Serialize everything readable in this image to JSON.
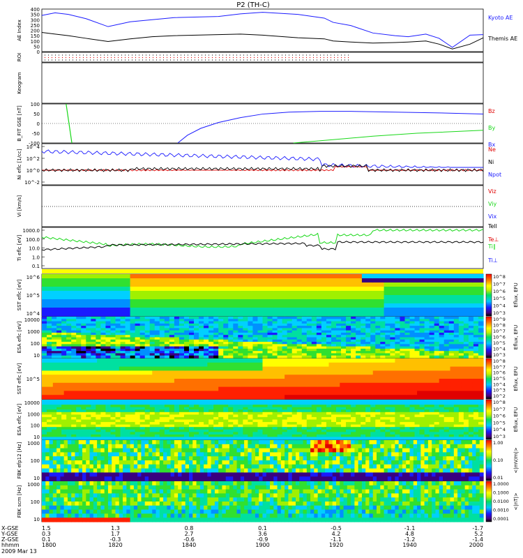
{
  "chart_data": {
    "type": "line",
    "title": "P2 (TH-C)",
    "colors": {
      "blue": "#1a1aff",
      "black": "#000000",
      "green": "#18d818",
      "red": "#e00000"
    },
    "x_axis": {
      "hhmm": [
        "1800",
        "1820",
        "1840",
        "1900",
        "1920",
        "1940",
        "2000"
      ],
      "x_gse": [
        "1.5",
        "1.3",
        "0.8",
        "0.1",
        "-0.5",
        "-1.1",
        "-1.7"
      ],
      "y_gse": [
        "0.3",
        "1.7",
        "2.7",
        "3.6",
        "4.2",
        "4.8",
        "5.2"
      ],
      "z_gse": [
        "0.1",
        "-0.3",
        "-0.6",
        "-0.9",
        "-1.1",
        "-1.2",
        "-1.4"
      ],
      "row_labels": [
        "X-GSE",
        "Y-GSE",
        "Z-GSE",
        "hhmm"
      ],
      "date": "2009 Mar 13"
    },
    "panels": [
      {
        "id": "ae",
        "ylabel": "AE Index",
        "yticks": [
          "0",
          "50",
          "100",
          "150",
          "200",
          "250",
          "300",
          "350",
          "400"
        ],
        "ylim": [
          0,
          400
        ],
        "series": [
          {
            "name": "Kyoto AE",
            "color": "#1a1aff",
            "x": [
              0,
              3,
              6,
              10,
              15,
              20,
              25,
              30,
              40,
              45,
              50,
              58,
              64,
              66,
              70,
              75,
              80,
              83,
              87,
              90,
              93,
              97,
              100
            ],
            "y": [
              340,
              365,
              350,
              310,
              235,
              280,
              300,
              320,
              330,
              355,
              370,
              350,
              315,
              275,
              245,
              175,
              150,
              140,
              165,
              125,
              40,
              155,
              160
            ]
          },
          {
            "name": "Themis AE",
            "color": "#000000",
            "x": [
              0,
              3,
              6,
              10,
              15,
              20,
              25,
              30,
              40,
              45,
              50,
              58,
              64,
              66,
              70,
              75,
              80,
              83,
              87,
              90,
              93,
              97,
              100
            ],
            "y": [
              180,
              165,
              150,
              125,
              95,
              120,
              140,
              150,
              160,
              165,
              155,
              130,
              120,
              100,
              90,
              80,
              85,
              90,
              100,
              70,
              25,
              70,
              130
            ]
          }
        ]
      },
      {
        "id": "roi",
        "ylabel": "ROI"
      },
      {
        "id": "keogram",
        "ylabel": "Keogram"
      },
      {
        "id": "bfit",
        "ylabel": "B_FIT GSE [nT]",
        "yticks": [
          "-100",
          "-50",
          "0",
          "50",
          "100"
        ],
        "ylim": [
          -100,
          100
        ],
        "series": [
          {
            "name": "Bz",
            "color": "#e00000"
          },
          {
            "name": "By",
            "color": "#18d818"
          },
          {
            "name": "Bx",
            "color": "#1a1aff"
          }
        ]
      },
      {
        "id": "density",
        "ylabel": "Ni eflc [1/cc]",
        "yticks": [
          "10^4",
          "10^2",
          "10^0",
          "10^-2"
        ],
        "series": [
          {
            "name": "Ne",
            "color": "#e00000"
          },
          {
            "name": "Ni",
            "color": "#000000"
          },
          {
            "name": "Npot",
            "color": "#1a1aff"
          }
        ]
      },
      {
        "id": "velocity",
        "ylabel": "Vi [km/s]",
        "series": [
          {
            "name": "Viz",
            "color": "#e00000"
          },
          {
            "name": "Viy",
            "color": "#18d818"
          },
          {
            "name": "Vix",
            "color": "#1a1aff"
          }
        ]
      },
      {
        "id": "temp",
        "ylabel": "Ti eflc [eV]",
        "yticks": [
          "1000.0",
          "100.0",
          "10.0",
          "1.0",
          "0.1"
        ],
        "series": [
          {
            "name": "Tell",
            "color": "#000000"
          },
          {
            "name": "Te⊥",
            "color": "#e00000"
          },
          {
            "name": "Ti∥",
            "color": "#18d818"
          },
          {
            "name": "Ti⊥",
            "color": "#1a1aff"
          }
        ]
      },
      {
        "id": "sst_e",
        "ylabel": "SST eflc [eV]",
        "yticks": [
          "10^6",
          "10^5",
          "10^4"
        ],
        "cb_ticks": [
          "10^8",
          "10^7",
          "10^6",
          "10^5",
          "10^4",
          "10^3"
        ],
        "cb_label": "Eflux, EFU"
      },
      {
        "id": "esa_e",
        "ylabel": "ESA eflc [eV]",
        "yticks": [
          "10000",
          "1000",
          "100",
          "10"
        ],
        "cb_ticks": [
          "10^9",
          "10^8",
          "10^7",
          "10^6",
          "10^5",
          "10^4",
          "10^3"
        ],
        "cb_label": "Eflux, EFU"
      },
      {
        "id": "sst_i",
        "ylabel": "SST eflc [eV]",
        "yticks": [
          "10^5"
        ],
        "cb_ticks": [
          "10^8",
          "10^7",
          "10^6",
          "10^5",
          "10^4",
          "10^3",
          "10^2"
        ],
        "cb_label": "Eflux, EFU"
      },
      {
        "id": "esa_i",
        "ylabel": "ESA eflc [eV]",
        "yticks": [
          "10000",
          "1000",
          "100",
          "10"
        ],
        "cb_ticks": [
          "10^8",
          "10^7",
          "10^6",
          "10^5",
          "10^4",
          "10^3"
        ],
        "cb_label": "Eflux, EFU"
      },
      {
        "id": "fbk_e",
        "ylabel": "FBK efp12 [Hz]",
        "yticks": [
          "1000",
          "100",
          "10"
        ],
        "cb_ticks": [
          "1.00",
          "0.10",
          "0.01"
        ],
        "cb_label": "<|mV/m|>"
      },
      {
        "id": "fbk_b",
        "ylabel": "FBK scm [Hz]",
        "yticks": [
          "1000",
          "100",
          "10"
        ],
        "cb_ticks": [
          "1.0000",
          "0.1000",
          "0.0100",
          "0.0010",
          "0.0001"
        ],
        "cb_label": "<|nT|>"
      }
    ]
  }
}
